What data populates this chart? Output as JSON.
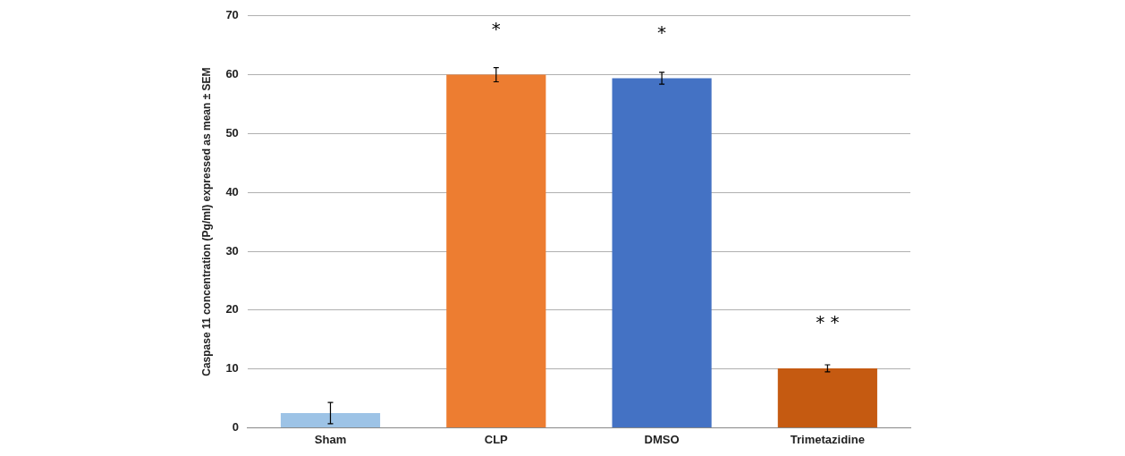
{
  "chart_data": {
    "type": "bar",
    "ylabel": "Caspase 11 concentration (Pg/ml) expressed as mean ± SEM",
    "categories": [
      "Sham",
      "CLP",
      "DMSO",
      "Trimetazidine"
    ],
    "values": [
      2.5,
      60,
      59.4,
      10.1
    ],
    "errors": [
      1.8,
      1.2,
      1.0,
      0.6
    ],
    "colors": [
      "#9dc3e6",
      "#ed7d31",
      "#4472c4",
      "#c55a11"
    ],
    "ylim": [
      0,
      70
    ],
    "yticks": [
      0,
      10,
      20,
      30,
      40,
      50,
      60,
      70
    ],
    "grid": "y",
    "annotations": [
      {
        "text": "*",
        "x": "CLP",
        "y": 60
      },
      {
        "text": "*",
        "x": "DMSO",
        "y": 59.4
      },
      {
        "text": "* *",
        "x": "Trimetazidine",
        "y": 10.1
      }
    ]
  }
}
